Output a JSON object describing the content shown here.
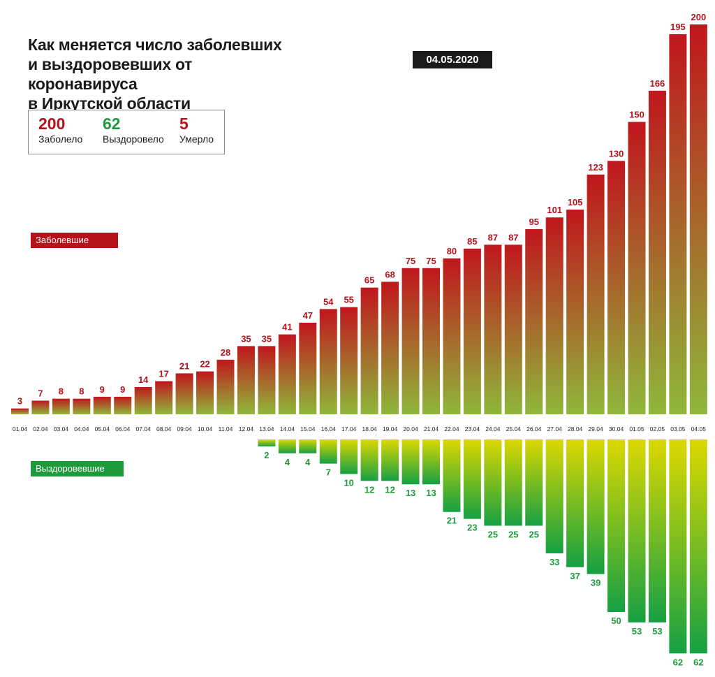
{
  "colors": {
    "cases": "#b5121b",
    "recovered": "#1e9a3d",
    "dark": "#1a1a1a"
  },
  "header": {
    "title_lines": [
      "Как меняется число заболевших",
      "и выздоровевших от коронавируса",
      "в Иркутской области"
    ],
    "date": "04.05.2020"
  },
  "stats": {
    "cases": {
      "value": "200",
      "label": "Заболело"
    },
    "recovered": {
      "value": "62",
      "label": "Выздоровело"
    },
    "deaths": {
      "value": "5",
      "label": "Умерло"
    }
  },
  "labels": {
    "cases_tag": "Заболевшие",
    "recovered_tag": "Выздоровевшие"
  },
  "chart_data": {
    "type": "bar",
    "categories": [
      "01.04",
      "02.04",
      "03.04",
      "04.04",
      "05.04",
      "06.04",
      "07.04",
      "08.04",
      "09.04",
      "10.04",
      "11.04",
      "12.04",
      "13.04",
      "14.04",
      "15.04",
      "16.04",
      "17.04",
      "18.04",
      "19.04",
      "20.04",
      "21.04",
      "22.04",
      "23.04",
      "24.04",
      "25.04",
      "26.04",
      "27.04",
      "28.04",
      "29.04",
      "30.04",
      "01.05",
      "02.05",
      "03.05",
      "04.05"
    ],
    "series": [
      {
        "name": "Заболевшие",
        "direction": "up",
        "values": [
          3,
          7,
          8,
          8,
          9,
          9,
          14,
          17,
          21,
          22,
          28,
          35,
          35,
          41,
          47,
          54,
          55,
          65,
          68,
          75,
          75,
          80,
          85,
          87,
          87,
          95,
          101,
          105,
          123,
          130,
          150,
          166,
          195,
          200
        ]
      },
      {
        "name": "Выздоровевшие",
        "direction": "down",
        "values": [
          null,
          null,
          null,
          null,
          null,
          null,
          null,
          null,
          null,
          null,
          null,
          null,
          2,
          4,
          4,
          7,
          10,
          12,
          12,
          13,
          13,
          21,
          23,
          25,
          25,
          25,
          33,
          37,
          39,
          50,
          53,
          53,
          62,
          62
        ]
      }
    ],
    "gradient_cases": [
      "#8fb73a",
      "#c0161d"
    ],
    "gradient_recovered": [
      "#dcd800",
      "#15a043"
    ]
  }
}
